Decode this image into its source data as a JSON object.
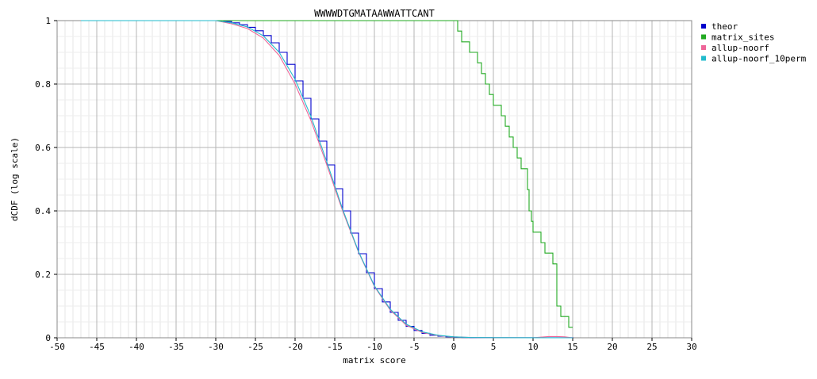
{
  "chart_data": {
    "type": "line",
    "title": "WWWWDTGMATAAWWATTCANT",
    "xlabel": "matrix score",
    "ylabel": "dCDF (log scale)",
    "xlim": [
      -50,
      30
    ],
    "ylim": [
      0,
      1
    ],
    "xticks": [
      -50,
      -45,
      -40,
      -35,
      -30,
      -25,
      -20,
      -15,
      -10,
      -5,
      0,
      5,
      10,
      15,
      20,
      25,
      30
    ],
    "xtick_labels": [
      "-50",
      "-45",
      "-40",
      "-35",
      "-30",
      "-25",
      "-20",
      "-15",
      "-10",
      "-5",
      "0",
      "5",
      "10",
      "15",
      "20",
      "25",
      "30"
    ],
    "yticks": [
      0,
      0.2,
      0.4,
      0.6,
      0.8,
      1
    ],
    "ytick_labels": [
      "0",
      "0.2",
      "0.4",
      "0.6",
      "0.8",
      "1"
    ],
    "grid": true,
    "legend_position": "top-right",
    "series": [
      {
        "name": "theor",
        "color": "#0000cc",
        "step": true,
        "x": [
          -47,
          -30,
          -29,
          -28,
          -27,
          -26,
          -25,
          -24,
          -23,
          -22,
          -21,
          -20,
          -19,
          -18,
          -17,
          -16,
          -15,
          -14,
          -13,
          -12,
          -11,
          -10,
          -9,
          -8,
          -7,
          -6,
          -5,
          -4,
          -3,
          -2,
          -1,
          0,
          1,
          2,
          5,
          10,
          15
        ],
        "y": [
          1,
          1,
          0.997,
          0.993,
          0.987,
          0.979,
          0.968,
          0.953,
          0.93,
          0.9,
          0.862,
          0.81,
          0.755,
          0.69,
          0.62,
          0.545,
          0.47,
          0.4,
          0.33,
          0.265,
          0.205,
          0.155,
          0.113,
          0.08,
          0.055,
          0.036,
          0.023,
          0.014,
          0.008,
          0.005,
          0.003,
          0.002,
          0.001,
          0.0005,
          0.0002,
          0.0001,
          0
        ]
      },
      {
        "name": "matrix_sites",
        "color": "#22aa22",
        "step": true,
        "x": [
          -47,
          0.5,
          1,
          1.5,
          2,
          3,
          3.5,
          4,
          4.5,
          5,
          5.5,
          6,
          6.5,
          7,
          7.5,
          8,
          8.5,
          9,
          9.3,
          9.5,
          9.8,
          10,
          10.5,
          11,
          11.5,
          12,
          12.5,
          13,
          13.5,
          14,
          14.5,
          15
        ],
        "y": [
          1,
          0.967,
          0.933,
          0.933,
          0.9,
          0.867,
          0.833,
          0.8,
          0.767,
          0.733,
          0.733,
          0.7,
          0.667,
          0.633,
          0.6,
          0.567,
          0.533,
          0.533,
          0.467,
          0.4,
          0.367,
          0.333,
          0.333,
          0.3,
          0.267,
          0.267,
          0.233,
          0.1,
          0.067,
          0.067,
          0.033,
          0.033
        ]
      },
      {
        "name": "allup-noorf",
        "color": "#ee6699",
        "step": false,
        "x": [
          -47,
          -30,
          -28,
          -26,
          -24,
          -22,
          -20,
          -18,
          -16,
          -15,
          -14,
          -12,
          -10,
          -8,
          -6,
          -4,
          -2,
          0,
          2,
          5,
          10,
          12,
          13,
          14,
          15
        ],
        "y": [
          1,
          1,
          0.99,
          0.975,
          0.945,
          0.89,
          0.8,
          0.685,
          0.545,
          0.472,
          0.4,
          0.27,
          0.162,
          0.087,
          0.04,
          0.017,
          0.007,
          0.003,
          0.001,
          0.0005,
          0.0002,
          0.004,
          0.004,
          0.003,
          0
        ]
      },
      {
        "name": "allup-noorf_10perm",
        "color": "#22bbcc",
        "step": false,
        "x": [
          -47,
          -30,
          -28,
          -26,
          -24,
          -22,
          -20,
          -18,
          -16,
          -15,
          -14,
          -12,
          -10,
          -8,
          -6,
          -4,
          -2,
          0,
          2,
          5,
          10,
          15
        ],
        "y": [
          1,
          1,
          0.993,
          0.98,
          0.952,
          0.9,
          0.815,
          0.698,
          0.555,
          0.48,
          0.405,
          0.272,
          0.164,
          0.09,
          0.043,
          0.019,
          0.008,
          0.003,
          0.001,
          0.0005,
          0.0002,
          0
        ]
      }
    ]
  }
}
